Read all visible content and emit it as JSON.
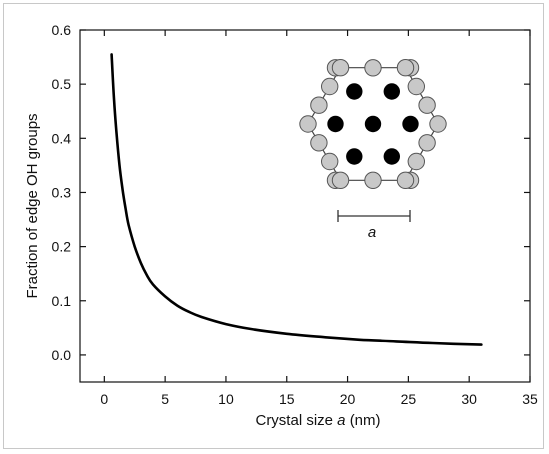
{
  "chart_data": {
    "type": "line",
    "title": "",
    "xlabel": "Crystal size",
    "xlabel_var": "a",
    "xlabel_unit": "(nm)",
    "ylabel": "Fraction of edge OH groups",
    "xlim": [
      -2,
      35
    ],
    "ylim": [
      -0.05,
      0.6
    ],
    "xticks": [
      0,
      5,
      10,
      15,
      20,
      25,
      30,
      35
    ],
    "yticks": [
      0.0,
      0.1,
      0.2,
      0.3,
      0.4,
      0.5,
      0.6
    ],
    "ytick_labels": [
      "0.0",
      "0.1",
      "0.2",
      "0.3",
      "0.4",
      "0.5",
      "0.6"
    ],
    "grid": false,
    "series": [
      {
        "color": "#000000",
        "x": [
          0.6,
          0.8,
          1.0,
          1.25,
          1.5,
          1.75,
          2.0,
          2.5,
          3.0,
          3.5,
          4.0,
          5.0,
          6.0,
          7.0,
          8.0,
          10.0,
          12.0,
          15.0,
          18.0,
          21.0,
          24.0,
          27.0,
          31.0
        ],
        "y": [
          0.555,
          0.47,
          0.41,
          0.35,
          0.305,
          0.27,
          0.24,
          0.2,
          0.17,
          0.147,
          0.13,
          0.108,
          0.091,
          0.079,
          0.07,
          0.057,
          0.048,
          0.039,
          0.033,
          0.028,
          0.025,
          0.022,
          0.019
        ]
      }
    ],
    "inset": {
      "description_label": "a",
      "edge_site_color": "#c8c8c8",
      "interior_site_color": "#000000"
    }
  }
}
